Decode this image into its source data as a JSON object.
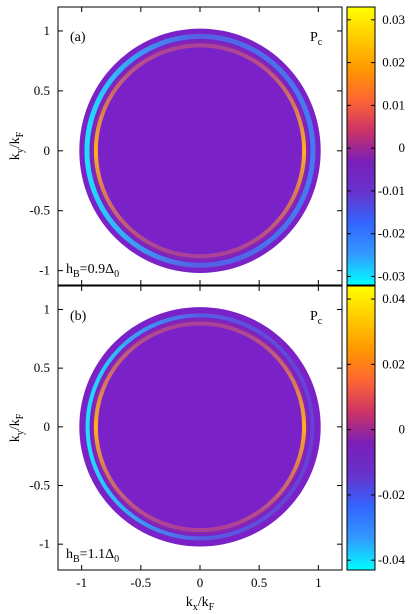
{
  "chart_data": [
    {
      "type": "heatmap",
      "panel_label": "(a)",
      "quantity": "P",
      "quantity_sub": "c",
      "field": {
        "base": "h",
        "sub": "B",
        "middle": "=0.9Δ",
        "end_sub": "0"
      },
      "ylabel": {
        "base": "k",
        "sub_y": "y",
        "sep": "/k",
        "sub_f": "F"
      },
      "xlim": [
        -1.2,
        1.2
      ],
      "ylim": [
        -1.12,
        1.2
      ],
      "yticks": [
        "-1",
        "-0.5",
        "0",
        "0.5",
        "1"
      ],
      "colorbar": {
        "range": [
          -0.032,
          0.033
        ],
        "ticks": [
          "-0.03",
          "-0.02",
          "-0.01",
          "0",
          "0.01",
          "0.02",
          "0.03"
        ],
        "tick_values": [
          -0.03,
          -0.02,
          -0.01,
          0,
          0.01,
          0.02,
          0.03
        ]
      },
      "rings": [
        {
          "radius": 0.955,
          "value": -0.03,
          "description": "outer negative ring, strong on left, weak on right"
        },
        {
          "radius": 0.88,
          "value": 0.025,
          "description": "inner positive ring"
        }
      ]
    },
    {
      "type": "heatmap",
      "panel_label": "(b)",
      "quantity": "P",
      "quantity_sub": "c",
      "field": {
        "base": "h",
        "sub": "B",
        "middle": "=1.1Δ",
        "end_sub": "0"
      },
      "ylabel": {
        "base": "k",
        "sub_y": "y",
        "sep": "/k",
        "sub_f": "F"
      },
      "xlim": [
        -1.2,
        1.2
      ],
      "ylim": [
        -1.22,
        1.2
      ],
      "yticks": [
        "-1",
        "-0.5",
        "0",
        "0.5",
        "1"
      ],
      "colorbar": {
        "range": [
          -0.043,
          0.044
        ],
        "ticks": [
          "-0.04",
          "-0.02",
          "0",
          "0.02",
          "0.04"
        ],
        "tick_values": [
          -0.04,
          -0.02,
          0,
          0.02,
          0.04
        ]
      },
      "rings": [
        {
          "radius": 0.95,
          "value": -0.035,
          "description": "outer negative ring on left"
        },
        {
          "radius": 0.88,
          "value": 0.035,
          "description": "inner positive ring"
        }
      ]
    }
  ],
  "xaxis": {
    "ticks": [
      "-1",
      "-0.5",
      "0",
      "0.5",
      "1"
    ],
    "tick_values": [
      -1,
      -0.5,
      0,
      0.5,
      1
    ],
    "label": {
      "base": "k",
      "sub_x": "x",
      "sep": "/k",
      "sub_f": "F"
    }
  },
  "colormap": [
    "#00ffff",
    "#3399ff",
    "#3366ff",
    "#6633cc",
    "#7a1fb8",
    "#cc3366",
    "#ff6633",
    "#ff9900",
    "#ffcc00",
    "#ffff00"
  ]
}
